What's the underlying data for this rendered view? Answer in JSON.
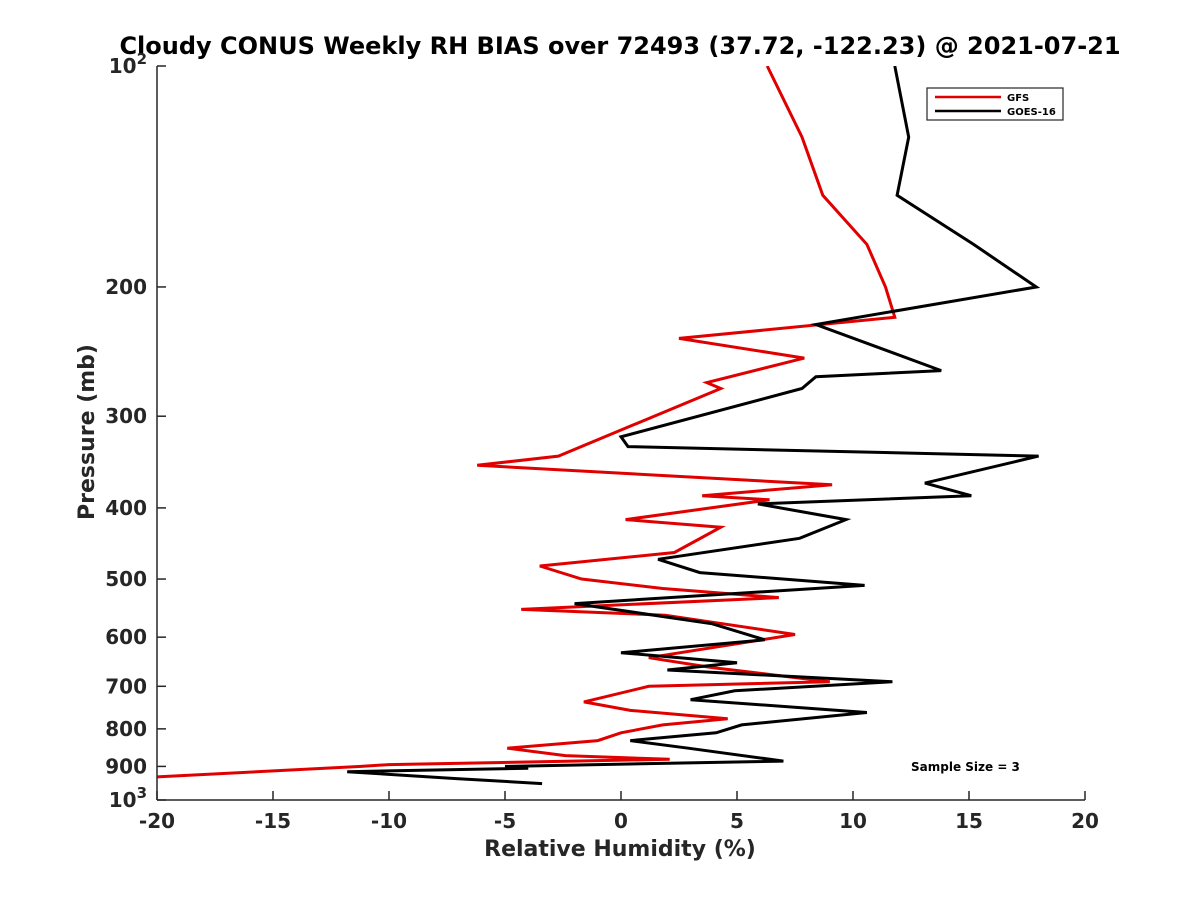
{
  "chart_data": {
    "type": "line",
    "title": "Cloudy CONUS Weekly RH BIAS over 72493 (37.72, -122.23) @ 2021-07-21",
    "xlabel": "Relative Humidity (%)",
    "ylabel": "Pressure (mb)",
    "xlim": [
      -20,
      20
    ],
    "ylim": [
      100,
      1000
    ],
    "y_scale": "log",
    "y_reversed": true,
    "x_ticks": [
      "-20",
      "-15",
      "-10",
      "-5",
      "0",
      "5",
      "10",
      "15",
      "20"
    ],
    "y_ticks": [
      {
        "value": 100,
        "label": "10",
        "sup": "2"
      },
      {
        "value": 200,
        "label": "200"
      },
      {
        "value": 300,
        "label": "300"
      },
      {
        "value": 400,
        "label": "400"
      },
      {
        "value": 500,
        "label": "500"
      },
      {
        "value": 600,
        "label": "600"
      },
      {
        "value": 700,
        "label": "700"
      },
      {
        "value": 800,
        "label": "800"
      },
      {
        "value": 900,
        "label": "900"
      },
      {
        "value": 1000,
        "label": "10",
        "sup": "3"
      }
    ],
    "grid": false,
    "legend_position": "top-right",
    "series": [
      {
        "name": "GFS",
        "color": "#e00000",
        "points": [
          [
            6.3,
            100
          ],
          [
            7.8,
            125
          ],
          [
            8.7,
            150
          ],
          [
            10.6,
            175
          ],
          [
            11.4,
            200
          ],
          [
            11.8,
            220
          ],
          [
            2.5,
            235
          ],
          [
            7.9,
            250
          ],
          [
            3.7,
            270
          ],
          [
            4.3,
            275
          ],
          [
            -2.7,
            340
          ],
          [
            -6.2,
            350
          ],
          [
            9.1,
            372
          ],
          [
            3.5,
            385
          ],
          [
            6.4,
            390
          ],
          [
            0.2,
            415
          ],
          [
            4.3,
            425
          ],
          [
            2.3,
            460
          ],
          [
            -3.5,
            480
          ],
          [
            -1.7,
            500
          ],
          [
            1.8,
            515
          ],
          [
            6.8,
            530
          ],
          [
            -4.3,
            550
          ],
          [
            1.9,
            560
          ],
          [
            7.5,
            595
          ],
          [
            1.2,
            640
          ],
          [
            3.9,
            660
          ],
          [
            9.0,
            690
          ],
          [
            1.2,
            700
          ],
          [
            -1.6,
            735
          ],
          [
            0.4,
            755
          ],
          [
            4.6,
            775
          ],
          [
            1.8,
            790
          ],
          [
            0.0,
            810
          ],
          [
            -1.0,
            830
          ],
          [
            -4.9,
            850
          ],
          [
            -2.4,
            870
          ],
          [
            2.1,
            880
          ],
          [
            -10.0,
            895
          ],
          [
            -11.2,
            900
          ],
          [
            -20.0,
            930
          ]
        ]
      },
      {
        "name": "GOES-16",
        "color": "#000000",
        "points": [
          [
            11.8,
            100
          ],
          [
            12.4,
            125
          ],
          [
            11.9,
            150
          ],
          [
            15.2,
            175
          ],
          [
            17.9,
            200
          ],
          [
            8.4,
            225
          ],
          [
            13.8,
            260
          ],
          [
            8.4,
            265
          ],
          [
            7.8,
            275
          ],
          [
            0.0,
            320
          ],
          [
            0.3,
            330
          ],
          [
            18.0,
            340
          ],
          [
            13.1,
            370
          ],
          [
            15.1,
            385
          ],
          [
            5.9,
            395
          ],
          [
            9.7,
            415
          ],
          [
            7.7,
            440
          ],
          [
            1.6,
            470
          ],
          [
            3.4,
            490
          ],
          [
            10.5,
            510
          ],
          [
            -2.0,
            540
          ],
          [
            3.9,
            575
          ],
          [
            6.2,
            605
          ],
          [
            0.0,
            630
          ],
          [
            5.0,
            650
          ],
          [
            2.0,
            665
          ],
          [
            11.7,
            690
          ],
          [
            4.9,
            710
          ],
          [
            3.0,
            730
          ],
          [
            10.6,
            760
          ],
          [
            5.2,
            790
          ],
          [
            4.1,
            810
          ],
          [
            0.4,
            830
          ],
          [
            2.9,
            850
          ],
          [
            7.0,
            885
          ],
          [
            -5.0,
            900
          ],
          [
            -4.0,
            905
          ],
          [
            -11.8,
            915
          ],
          [
            -7.1,
            935
          ],
          [
            -3.4,
            950
          ]
        ]
      }
    ],
    "annotation": "Sample Size = 3"
  }
}
